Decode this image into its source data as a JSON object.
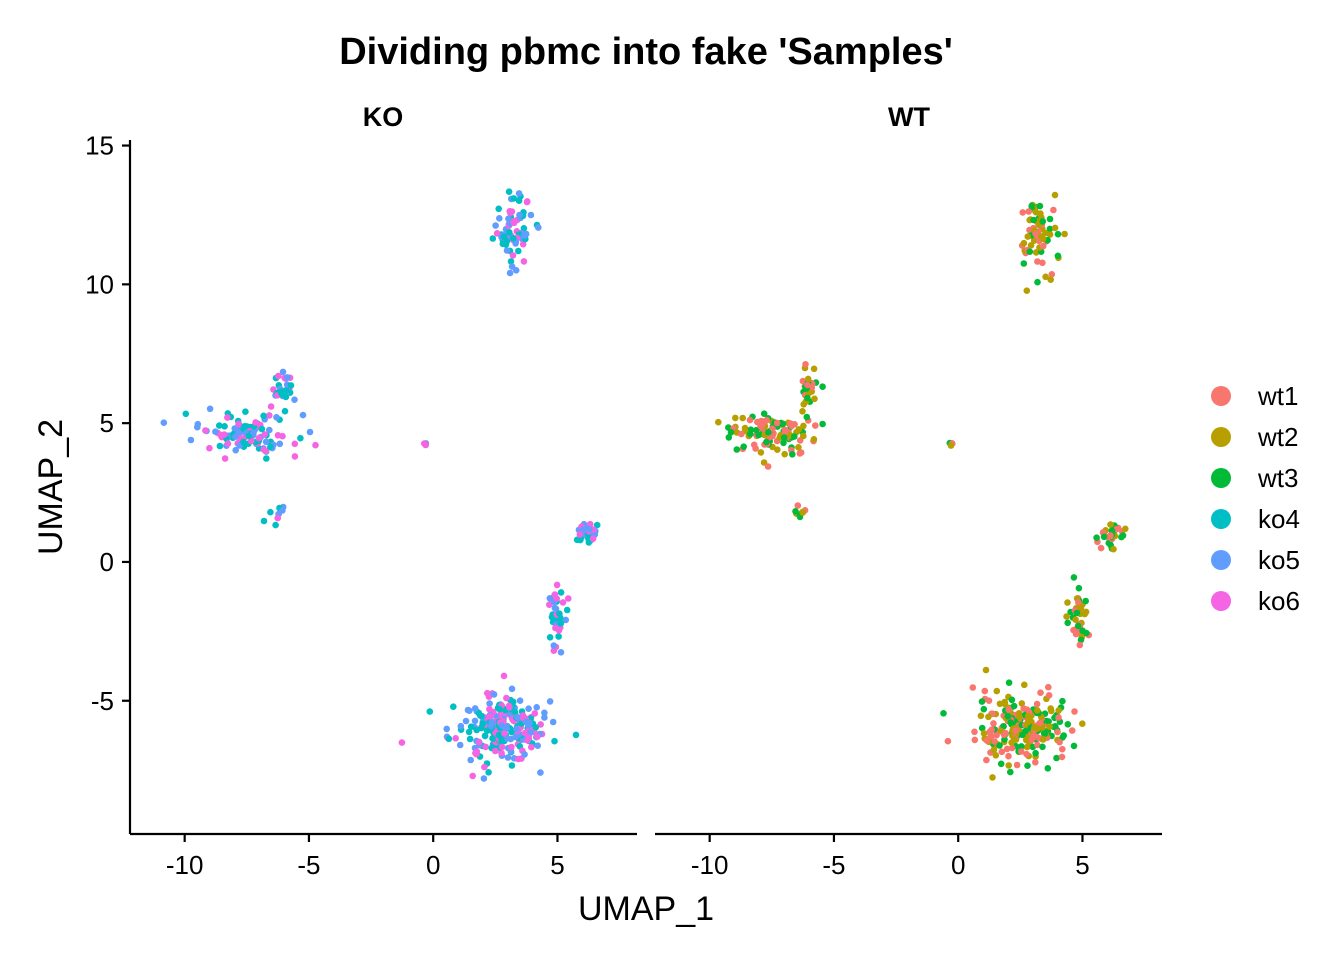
{
  "chart_data": {
    "type": "scatter",
    "title": "Dividing pbmc into fake 'Samples'",
    "xlabel": "UMAP_1",
    "ylabel": "UMAP_2",
    "xlim": [
      -12.2,
      8.2
    ],
    "ylim": [
      -9.8,
      15.2
    ],
    "x_ticks": [
      -10,
      -5,
      0,
      5
    ],
    "x_tick_labels": [
      "-10",
      "-5",
      "0",
      "5"
    ],
    "y_ticks": [
      -5,
      0,
      5,
      10,
      15
    ],
    "y_tick_labels": [
      "-5",
      "0",
      "5",
      "10",
      "15"
    ],
    "grid": false,
    "legend_position": "right",
    "panels": [
      {
        "label": "KO",
        "groups": [
          "ko4",
          "ko5",
          "ko6"
        ]
      },
      {
        "label": "WT",
        "groups": [
          "wt1",
          "wt2",
          "wt3"
        ]
      }
    ],
    "series": [
      {
        "name": "wt1",
        "color": "#F8766D",
        "panel": "WT"
      },
      {
        "name": "wt2",
        "color": "#B79F00",
        "panel": "WT"
      },
      {
        "name": "wt3",
        "color": "#00BA38",
        "panel": "WT"
      },
      {
        "name": "ko4",
        "color": "#00BFC4",
        "panel": "KO"
      },
      {
        "name": "ko5",
        "color": "#619CFF",
        "panel": "KO"
      },
      {
        "name": "ko6",
        "color": "#F564E3",
        "panel": "KO"
      }
    ],
    "clusters": [
      {
        "center": [
          3.2,
          12.0
        ],
        "spread": [
          0.65,
          1.1
        ],
        "n": 70
      },
      {
        "center": [
          -7.5,
          4.6
        ],
        "spread": [
          1.6,
          0.6
        ],
        "n": 110
      },
      {
        "center": [
          -6.0,
          6.3
        ],
        "spread": [
          0.4,
          0.6
        ],
        "n": 28
      },
      {
        "center": [
          -6.3,
          1.8
        ],
        "spread": [
          0.25,
          0.35
        ],
        "n": 8
      },
      {
        "center": [
          -0.3,
          4.25
        ],
        "spread": [
          0.05,
          0.05
        ],
        "n": 4
      },
      {
        "center": [
          2.6,
          -6.0
        ],
        "spread": [
          1.6,
          1.0
        ],
        "n": 230
      },
      {
        "center": [
          4.9,
          -2.0
        ],
        "spread": [
          0.35,
          1.0
        ],
        "n": 40
      },
      {
        "center": [
          6.2,
          1.0
        ],
        "spread": [
          0.4,
          0.35
        ],
        "n": 30
      }
    ]
  }
}
